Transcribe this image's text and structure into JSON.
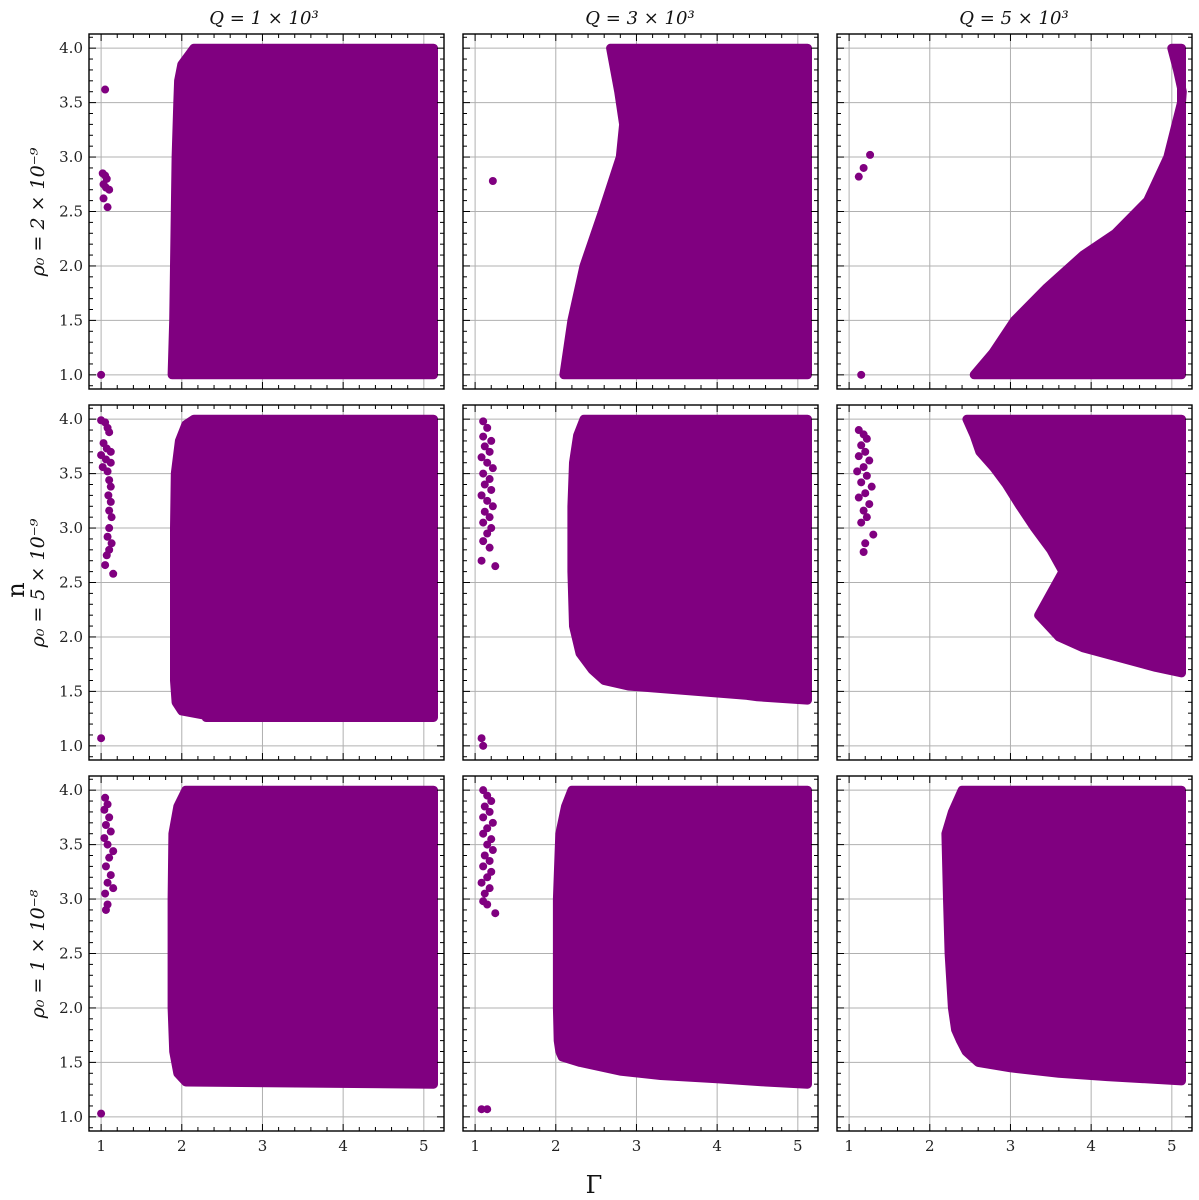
{
  "figure": {
    "xlabel": "Γ",
    "ylabel": "n",
    "col_titles": [
      "Q = 1 × 10³",
      "Q = 3 × 10³",
      "Q = 5 × 10³"
    ],
    "row_labels": [
      "ρ₀ = 2 × 10⁻⁹",
      "ρ₀ = 5 × 10⁻⁹",
      "ρ₀ = 1 × 10⁻⁸"
    ],
    "x_ticks": [
      "1",
      "2",
      "3",
      "4",
      "5"
    ],
    "y_ticks": [
      "1.0",
      "1.5",
      "2.0",
      "2.5",
      "3.0",
      "3.5",
      "4.0"
    ],
    "colors": {
      "marker": "#800080",
      "grid": "#b0b0b0",
      "axes": "#000000"
    }
  },
  "chart_data": [
    {
      "type": "scatter",
      "row": 0,
      "col": 0,
      "grid": true,
      "xlim": [
        0.85,
        5.25
      ],
      "ylim": [
        0.87,
        4.13
      ],
      "region": {
        "y": [
          1.0,
          4.0
        ],
        "left": [
          [
            1.0,
            1.88
          ],
          [
            1.5,
            1.9
          ],
          [
            2.0,
            1.91
          ],
          [
            2.5,
            1.92
          ],
          [
            3.0,
            1.93
          ],
          [
            3.5,
            1.95
          ],
          [
            3.7,
            1.96
          ],
          [
            3.85,
            2.0
          ],
          [
            4.0,
            2.15
          ]
        ],
        "right": [
          [
            1.0,
            5.12
          ],
          [
            4.0,
            5.12
          ]
        ]
      },
      "points": [
        [
          1.0,
          1.0
        ],
        [
          1.05,
          3.62
        ],
        [
          1.02,
          2.85
        ],
        [
          1.05,
          2.83
        ],
        [
          1.07,
          2.8
        ],
        [
          1.03,
          2.75
        ],
        [
          1.06,
          2.72
        ],
        [
          1.1,
          2.7
        ],
        [
          1.03,
          2.62
        ],
        [
          1.08,
          2.54
        ]
      ]
    },
    {
      "type": "scatter",
      "row": 0,
      "col": 1,
      "grid": true,
      "xlim": [
        0.85,
        5.25
      ],
      "ylim": [
        0.87,
        4.13
      ],
      "region": {
        "y": [
          1.0,
          4.0
        ],
        "left": [
          [
            1.0,
            2.1
          ],
          [
            1.5,
            2.2
          ],
          [
            2.0,
            2.35
          ],
          [
            2.5,
            2.58
          ],
          [
            3.0,
            2.8
          ],
          [
            3.3,
            2.84
          ],
          [
            3.6,
            2.78
          ],
          [
            4.0,
            2.68
          ]
        ],
        "right": [
          [
            1.0,
            5.12
          ],
          [
            4.0,
            5.12
          ]
        ]
      },
      "points": [
        [
          1.22,
          2.78
        ]
      ]
    },
    {
      "type": "scatter",
      "row": 0,
      "col": 2,
      "grid": true,
      "xlim": [
        0.85,
        5.25
      ],
      "ylim": [
        0.87,
        4.13
      ],
      "region": {
        "y": [
          1.0,
          4.0
        ],
        "left": [
          [
            1.0,
            2.55
          ],
          [
            1.2,
            2.78
          ],
          [
            1.5,
            3.05
          ],
          [
            1.8,
            3.45
          ],
          [
            2.1,
            3.9
          ],
          [
            2.3,
            4.3
          ],
          [
            2.6,
            4.7
          ],
          [
            3.0,
            4.95
          ],
          [
            3.5,
            5.12
          ],
          [
            3.6,
            5.13
          ]
        ],
        "right": [
          [
            1.0,
            5.12
          ],
          [
            4.0,
            5.12
          ]
        ],
        "right_top": [
          [
            3.6,
            5.13
          ],
          [
            3.8,
            5.07
          ],
          [
            4.0,
            5.0
          ]
        ]
      },
      "points": [
        [
          1.15,
          1.0
        ],
        [
          1.12,
          2.82
        ],
        [
          1.18,
          2.9
        ],
        [
          1.26,
          3.02
        ]
      ]
    },
    {
      "type": "scatter",
      "row": 1,
      "col": 0,
      "grid": true,
      "xlim": [
        0.85,
        5.25
      ],
      "ylim": [
        0.87,
        4.13
      ],
      "region": {
        "y": [
          1.26,
          4.0
        ],
        "left": [
          [
            1.28,
            2.3
          ],
          [
            1.32,
            2.0
          ],
          [
            1.4,
            1.93
          ],
          [
            1.6,
            1.91
          ],
          [
            2.0,
            1.91
          ],
          [
            3.0,
            1.91
          ],
          [
            3.5,
            1.92
          ],
          [
            3.8,
            1.97
          ],
          [
            3.95,
            2.05
          ],
          [
            4.0,
            2.15
          ]
        ],
        "right": [
          [
            1.26,
            5.12
          ],
          [
            4.0,
            5.12
          ]
        ],
        "bottom": [
          [
            1.26,
            2.3
          ],
          [
            1.26,
            5.12
          ]
        ]
      },
      "points": [
        [
          1.0,
          1.07
        ],
        [
          1.0,
          3.99
        ],
        [
          1.05,
          3.97
        ],
        [
          1.08,
          3.92
        ],
        [
          1.1,
          3.88
        ],
        [
          1.03,
          3.78
        ],
        [
          1.07,
          3.73
        ],
        [
          1.12,
          3.7
        ],
        [
          1.0,
          3.67
        ],
        [
          1.06,
          3.63
        ],
        [
          1.12,
          3.6
        ],
        [
          1.02,
          3.56
        ],
        [
          1.08,
          3.52
        ],
        [
          1.1,
          3.44
        ],
        [
          1.12,
          3.38
        ],
        [
          1.09,
          3.3
        ],
        [
          1.12,
          3.24
        ],
        [
          1.1,
          3.16
        ],
        [
          1.13,
          3.1
        ],
        [
          1.1,
          3.0
        ],
        [
          1.08,
          2.92
        ],
        [
          1.13,
          2.86
        ],
        [
          1.1,
          2.8
        ],
        [
          1.07,
          2.75
        ],
        [
          1.05,
          2.66
        ],
        [
          1.15,
          2.58
        ]
      ]
    },
    {
      "type": "scatter",
      "row": 1,
      "col": 1,
      "grid": true,
      "xlim": [
        0.85,
        5.25
      ],
      "ylim": [
        0.87,
        4.13
      ],
      "region": {
        "y": [
          1.42,
          4.0
        ],
        "left": [
          [
            1.55,
            2.9
          ],
          [
            1.6,
            2.6
          ],
          [
            1.7,
            2.45
          ],
          [
            1.85,
            2.3
          ],
          [
            2.1,
            2.22
          ],
          [
            2.6,
            2.2
          ],
          [
            3.2,
            2.2
          ],
          [
            3.6,
            2.22
          ],
          [
            3.85,
            2.27
          ],
          [
            4.0,
            2.35
          ]
        ],
        "right": [
          [
            1.42,
            5.12
          ],
          [
            4.0,
            5.12
          ]
        ],
        "bottom": [
          [
            1.55,
            2.9
          ],
          [
            1.5,
            4.0
          ],
          [
            1.45,
            4.5
          ],
          [
            1.42,
            5.12
          ]
        ]
      },
      "points": [
        [
          1.08,
          1.07
        ],
        [
          1.1,
          1.0
        ],
        [
          1.1,
          3.98
        ],
        [
          1.15,
          3.92
        ],
        [
          1.1,
          3.84
        ],
        [
          1.2,
          3.8
        ],
        [
          1.12,
          3.75
        ],
        [
          1.18,
          3.7
        ],
        [
          1.08,
          3.65
        ],
        [
          1.15,
          3.6
        ],
        [
          1.22,
          3.55
        ],
        [
          1.1,
          3.5
        ],
        [
          1.18,
          3.45
        ],
        [
          1.12,
          3.4
        ],
        [
          1.2,
          3.35
        ],
        [
          1.08,
          3.3
        ],
        [
          1.15,
          3.25
        ],
        [
          1.22,
          3.2
        ],
        [
          1.12,
          3.15
        ],
        [
          1.18,
          3.1
        ],
        [
          1.1,
          3.05
        ],
        [
          1.2,
          3.0
        ],
        [
          1.15,
          2.95
        ],
        [
          1.1,
          2.88
        ],
        [
          1.18,
          2.82
        ],
        [
          1.08,
          2.7
        ],
        [
          1.25,
          2.65
        ]
      ]
    },
    {
      "type": "scatter",
      "row": 1,
      "col": 2,
      "grid": true,
      "xlim": [
        0.85,
        5.25
      ],
      "ylim": [
        0.87,
        4.13
      ],
      "region": {
        "y": [
          1.67,
          4.0
        ],
        "left": [
          [
            2.6,
            3.65
          ],
          [
            2.8,
            3.5
          ],
          [
            3.0,
            3.3
          ],
          [
            3.2,
            3.12
          ],
          [
            3.4,
            2.95
          ],
          [
            3.55,
            2.8
          ],
          [
            3.7,
            2.62
          ],
          [
            3.85,
            2.55
          ],
          [
            4.0,
            2.46
          ]
        ],
        "right": [
          [
            1.67,
            5.12
          ],
          [
            4.0,
            5.12
          ]
        ],
        "bottom": [
          [
            2.6,
            3.65
          ],
          [
            2.2,
            3.35
          ],
          [
            2.0,
            3.6
          ],
          [
            1.9,
            3.9
          ],
          [
            1.8,
            4.4
          ],
          [
            1.72,
            4.8
          ],
          [
            1.67,
            5.12
          ]
        ]
      },
      "points": [
        [
          1.12,
          3.9
        ],
        [
          1.18,
          3.86
        ],
        [
          1.22,
          3.82
        ],
        [
          1.15,
          3.76
        ],
        [
          1.2,
          3.7
        ],
        [
          1.12,
          3.66
        ],
        [
          1.25,
          3.62
        ],
        [
          1.18,
          3.56
        ],
        [
          1.1,
          3.52
        ],
        [
          1.22,
          3.48
        ],
        [
          1.15,
          3.42
        ],
        [
          1.28,
          3.38
        ],
        [
          1.2,
          3.32
        ],
        [
          1.12,
          3.28
        ],
        [
          1.25,
          3.22
        ],
        [
          1.18,
          3.16
        ],
        [
          1.22,
          3.1
        ],
        [
          1.15,
          3.05
        ],
        [
          1.3,
          2.94
        ],
        [
          1.2,
          2.86
        ],
        [
          1.18,
          2.78
        ]
      ]
    },
    {
      "type": "scatter",
      "row": 2,
      "col": 0,
      "grid": true,
      "xlim": [
        0.85,
        5.25
      ],
      "ylim": [
        0.87,
        4.13
      ],
      "region": {
        "y": [
          1.3,
          4.0
        ],
        "left": [
          [
            1.32,
            2.05
          ],
          [
            1.4,
            1.95
          ],
          [
            1.6,
            1.9
          ],
          [
            2.0,
            1.88
          ],
          [
            3.0,
            1.88
          ],
          [
            3.6,
            1.89
          ],
          [
            3.85,
            1.95
          ],
          [
            4.0,
            2.05
          ]
        ],
        "right": [
          [
            1.3,
            5.12
          ],
          [
            4.0,
            5.12
          ]
        ],
        "bottom": [
          [
            1.32,
            2.05
          ],
          [
            1.3,
            5.12
          ]
        ]
      },
      "points": [
        [
          1.0,
          1.03
        ],
        [
          1.05,
          3.93
        ],
        [
          1.08,
          3.87
        ],
        [
          1.04,
          3.82
        ],
        [
          1.1,
          3.75
        ],
        [
          1.06,
          3.68
        ],
        [
          1.12,
          3.62
        ],
        [
          1.04,
          3.56
        ],
        [
          1.08,
          3.5
        ],
        [
          1.15,
          3.44
        ],
        [
          1.1,
          3.38
        ],
        [
          1.06,
          3.3
        ],
        [
          1.12,
          3.22
        ],
        [
          1.08,
          3.15
        ],
        [
          1.15,
          3.1
        ],
        [
          1.05,
          3.05
        ],
        [
          1.08,
          2.95
        ],
        [
          1.06,
          2.9
        ]
      ]
    },
    {
      "type": "scatter",
      "row": 2,
      "col": 1,
      "grid": true,
      "xlim": [
        0.85,
        5.25
      ],
      "ylim": [
        0.87,
        4.13
      ],
      "region": {
        "y": [
          1.3,
          4.0
        ],
        "left": [
          [
            1.5,
            2.3
          ],
          [
            1.55,
            2.08
          ],
          [
            1.6,
            2.05
          ],
          [
            1.7,
            2.03
          ],
          [
            2.0,
            2.02
          ],
          [
            3.0,
            2.02
          ],
          [
            3.6,
            2.05
          ],
          [
            3.85,
            2.12
          ],
          [
            4.0,
            2.2
          ]
        ],
        "right": [
          [
            1.3,
            5.12
          ],
          [
            4.0,
            5.12
          ]
        ],
        "bottom": [
          [
            1.5,
            2.3
          ],
          [
            1.42,
            2.8
          ],
          [
            1.38,
            3.3
          ],
          [
            1.35,
            4.0
          ],
          [
            1.32,
            4.6
          ],
          [
            1.3,
            5.12
          ]
        ]
      },
      "points": [
        [
          1.08,
          1.07
        ],
        [
          1.15,
          1.07
        ],
        [
          1.1,
          4.0
        ],
        [
          1.15,
          3.95
        ],
        [
          1.2,
          3.9
        ],
        [
          1.12,
          3.85
        ],
        [
          1.18,
          3.8
        ],
        [
          1.1,
          3.75
        ],
        [
          1.22,
          3.7
        ],
        [
          1.15,
          3.65
        ],
        [
          1.1,
          3.6
        ],
        [
          1.2,
          3.55
        ],
        [
          1.15,
          3.5
        ],
        [
          1.22,
          3.45
        ],
        [
          1.12,
          3.4
        ],
        [
          1.18,
          3.35
        ],
        [
          1.1,
          3.3
        ],
        [
          1.2,
          3.25
        ],
        [
          1.15,
          3.2
        ],
        [
          1.08,
          3.15
        ],
        [
          1.18,
          3.1
        ],
        [
          1.12,
          3.05
        ],
        [
          1.1,
          2.98
        ],
        [
          1.15,
          2.95
        ],
        [
          1.25,
          2.87
        ]
      ]
    },
    {
      "type": "scatter",
      "row": 2,
      "col": 2,
      "grid": true,
      "xlim": [
        0.85,
        5.25
      ],
      "ylim": [
        0.87,
        4.13
      ],
      "region": {
        "y": [
          1.33,
          4.0
        ],
        "left": [
          [
            1.5,
            2.6
          ],
          [
            1.6,
            2.45
          ],
          [
            1.7,
            2.38
          ],
          [
            1.8,
            2.32
          ],
          [
            2.0,
            2.28
          ],
          [
            2.5,
            2.24
          ],
          [
            3.0,
            2.22
          ],
          [
            3.6,
            2.2
          ],
          [
            3.8,
            2.28
          ],
          [
            4.0,
            2.4
          ]
        ],
        "right": [
          [
            1.33,
            5.12
          ],
          [
            4.0,
            5.12
          ]
        ],
        "bottom": [
          [
            1.5,
            2.6
          ],
          [
            1.45,
            3.0
          ],
          [
            1.4,
            3.6
          ],
          [
            1.37,
            4.2
          ],
          [
            1.33,
            5.12
          ]
        ]
      },
      "points": []
    }
  ]
}
